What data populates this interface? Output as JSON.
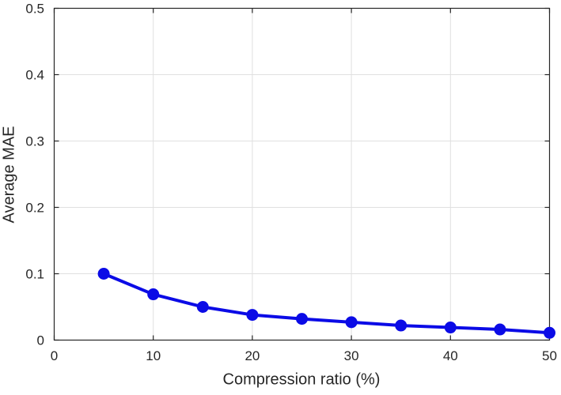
{
  "chart_data": {
    "type": "line",
    "xlabel": "Compression ratio (%)",
    "ylabel": "Average MAE",
    "x": [
      5,
      10,
      15,
      20,
      25,
      30,
      35,
      40,
      45,
      50
    ],
    "series": [
      {
        "name": "Average MAE",
        "values": [
          0.1,
          0.069,
          0.05,
          0.038,
          0.032,
          0.027,
          0.022,
          0.019,
          0.016,
          0.011
        ],
        "color": "#0b0be6",
        "line_width": 4,
        "marker": "circle",
        "marker_diameter": 15
      }
    ],
    "xlim": [
      0,
      50
    ],
    "ylim": [
      0,
      0.5
    ],
    "xticks": [
      0,
      10,
      20,
      30,
      40,
      50
    ],
    "xtick_labels": [
      "0",
      "10",
      "20",
      "30",
      "40",
      "50"
    ],
    "yticks": [
      0,
      0.1,
      0.2,
      0.3,
      0.4,
      0.5
    ],
    "ytick_labels": [
      "0",
      "0.1",
      "0.2",
      "0.3",
      "0.4",
      "0.5"
    ],
    "grid": true,
    "legend_position": "none",
    "axis_color": "#262626",
    "grid_color": "#e0e0e0",
    "background": "#ffffff"
  }
}
